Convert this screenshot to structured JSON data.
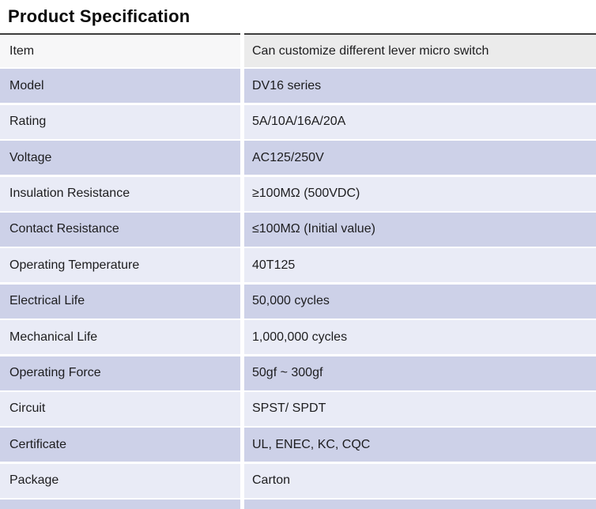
{
  "page": {
    "title": "Product Specification"
  },
  "colors": {
    "row_dark": "#cdd1e8",
    "row_light": "#e9ebf6",
    "header_label_bg": "#f7f7f8",
    "header_value_bg": "#ebebeb",
    "top_border": "#3d3d3d",
    "text": "#1d1d1f"
  },
  "table": {
    "rows": [
      {
        "label": "Item",
        "value": "Can customize different lever micro switch",
        "shade": "header"
      },
      {
        "label": "Model",
        "value": "DV16 series",
        "shade": "dark"
      },
      {
        "label": "Rating",
        "value": "5A/10A/16A/20A",
        "shade": "light"
      },
      {
        "label": "Voltage",
        "value": "AC125/250V",
        "shade": "dark"
      },
      {
        "label": "Insulation Resistance",
        "value": "≥100MΩ (500VDC)",
        "shade": "light"
      },
      {
        "label": "Contact Resistance",
        "value": "≤100MΩ (Initial value)",
        "shade": "dark"
      },
      {
        "label": "Operating Temperature",
        "value": "40T125",
        "shade": "light"
      },
      {
        "label": "Electrical Life",
        "value": "50,000 cycles",
        "shade": "dark"
      },
      {
        "label": "Mechanical Life",
        "value": "1,000,000 cycles",
        "shade": "light"
      },
      {
        "label": "Operating Force",
        "value": "50gf ~ 300gf",
        "shade": "dark"
      },
      {
        "label": "Circuit",
        "value": "SPST/ SPDT",
        "shade": "light"
      },
      {
        "label": "Certificate",
        "value": "UL, ENEC, KC, CQC",
        "shade": "dark"
      },
      {
        "label": "Package",
        "value": "Carton",
        "shade": "light"
      }
    ]
  }
}
